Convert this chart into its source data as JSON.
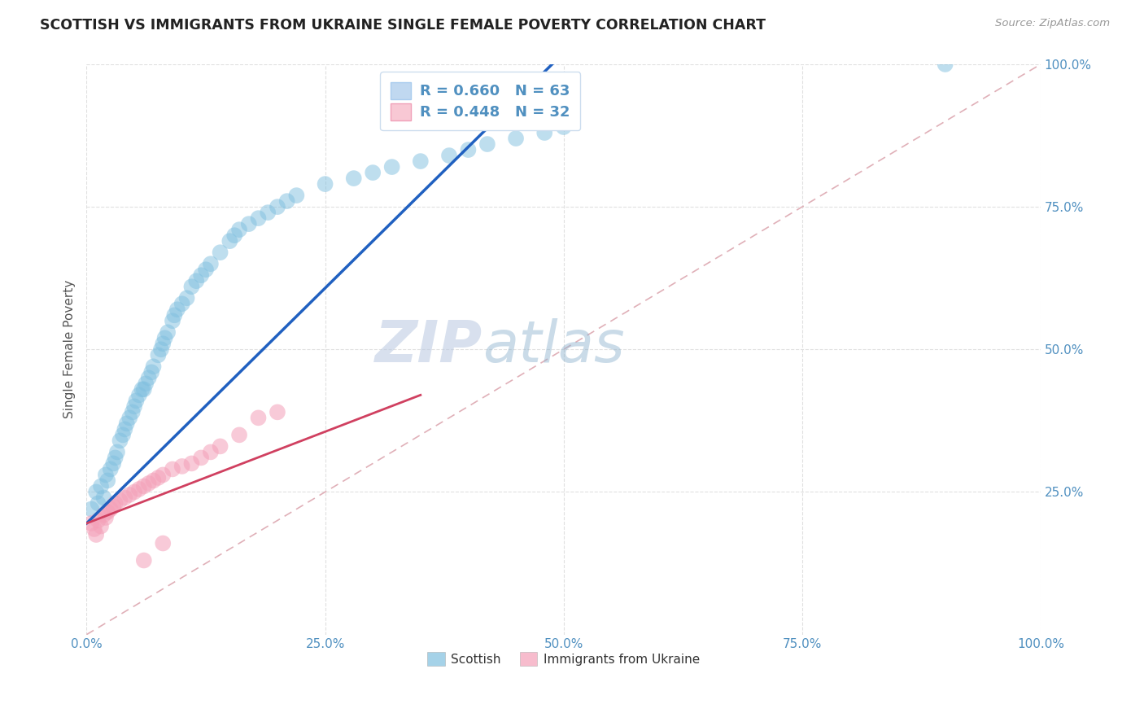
{
  "title": "SCOTTISH VS IMMIGRANTS FROM UKRAINE SINGLE FEMALE POVERTY CORRELATION CHART",
  "source": "Source: ZipAtlas.com",
  "ylabel": "Single Female Poverty",
  "xlim": [
    0.0,
    1.0
  ],
  "ylim": [
    0.0,
    1.0
  ],
  "xtick_labels": [
    "0.0%",
    "25.0%",
    "50.0%",
    "75.0%",
    "100.0%"
  ],
  "xtick_vals": [
    0.0,
    0.25,
    0.5,
    0.75,
    1.0
  ],
  "right_ytick_labels": [
    "25.0%",
    "50.0%",
    "75.0%",
    "100.0%"
  ],
  "right_ytick_vals": [
    0.25,
    0.5,
    0.75,
    1.0
  ],
  "R_scottish": 0.66,
  "N_scottish": 63,
  "R_ukraine": 0.448,
  "N_ukraine": 32,
  "scottish_color": "#7fbfdf",
  "ukraine_color": "#f4a0b8",
  "trend_color_scottish": "#2060c0",
  "trend_color_ukraine": "#d04060",
  "diagonal_color": "#e0b0b8",
  "legend_box_color_scottish": "#c0d8f0",
  "legend_box_color_ukraine": "#f8c8d4",
  "background_color": "#ffffff",
  "grid_color": "#e0e0e0",
  "title_color": "#222222",
  "axis_label_color": "#555555",
  "tick_label_color": "#5090c0",
  "watermark_zip_color": "#c0c8e8",
  "watermark_atlas_color": "#a8c0d8",
  "scottish_x": [
    0.005,
    0.01,
    0.012,
    0.015,
    0.018,
    0.02,
    0.022,
    0.025,
    0.028,
    0.03,
    0.032,
    0.035,
    0.038,
    0.04,
    0.042,
    0.045,
    0.048,
    0.05,
    0.052,
    0.055,
    0.058,
    0.06,
    0.062,
    0.065,
    0.068,
    0.07,
    0.075,
    0.078,
    0.08,
    0.082,
    0.085,
    0.09,
    0.092,
    0.095,
    0.1,
    0.105,
    0.11,
    0.115,
    0.12,
    0.125,
    0.13,
    0.14,
    0.15,
    0.155,
    0.16,
    0.17,
    0.18,
    0.19,
    0.2,
    0.21,
    0.22,
    0.25,
    0.28,
    0.3,
    0.32,
    0.35,
    0.38,
    0.4,
    0.42,
    0.45,
    0.48,
    0.5,
    0.9
  ],
  "scottish_y": [
    0.22,
    0.25,
    0.23,
    0.26,
    0.24,
    0.28,
    0.27,
    0.29,
    0.3,
    0.31,
    0.32,
    0.34,
    0.35,
    0.36,
    0.37,
    0.38,
    0.39,
    0.4,
    0.41,
    0.42,
    0.43,
    0.43,
    0.44,
    0.45,
    0.46,
    0.47,
    0.49,
    0.5,
    0.51,
    0.52,
    0.53,
    0.55,
    0.56,
    0.57,
    0.58,
    0.59,
    0.61,
    0.62,
    0.63,
    0.64,
    0.65,
    0.67,
    0.69,
    0.7,
    0.71,
    0.72,
    0.73,
    0.74,
    0.75,
    0.76,
    0.77,
    0.79,
    0.8,
    0.81,
    0.82,
    0.83,
    0.84,
    0.85,
    0.86,
    0.87,
    0.88,
    0.89,
    1.0
  ],
  "ukraine_x": [
    0.005,
    0.008,
    0.01,
    0.012,
    0.015,
    0.018,
    0.02,
    0.022,
    0.025,
    0.028,
    0.03,
    0.035,
    0.04,
    0.045,
    0.05,
    0.055,
    0.06,
    0.065,
    0.07,
    0.075,
    0.08,
    0.09,
    0.1,
    0.11,
    0.12,
    0.13,
    0.14,
    0.16,
    0.18,
    0.2,
    0.08,
    0.06
  ],
  "ukraine_y": [
    0.195,
    0.185,
    0.175,
    0.2,
    0.19,
    0.21,
    0.205,
    0.215,
    0.22,
    0.225,
    0.23,
    0.235,
    0.24,
    0.245,
    0.25,
    0.255,
    0.26,
    0.265,
    0.27,
    0.275,
    0.28,
    0.29,
    0.295,
    0.3,
    0.31,
    0.32,
    0.33,
    0.35,
    0.38,
    0.39,
    0.16,
    0.13
  ],
  "trend_scottish_x0": 0.0,
  "trend_scottish_y0": 0.195,
  "trend_scottish_x1": 0.5,
  "trend_scottish_y1": 1.02,
  "trend_ukraine_x0": 0.0,
  "trend_ukraine_y0": 0.195,
  "trend_ukraine_x1": 0.35,
  "trend_ukraine_y1": 0.42
}
